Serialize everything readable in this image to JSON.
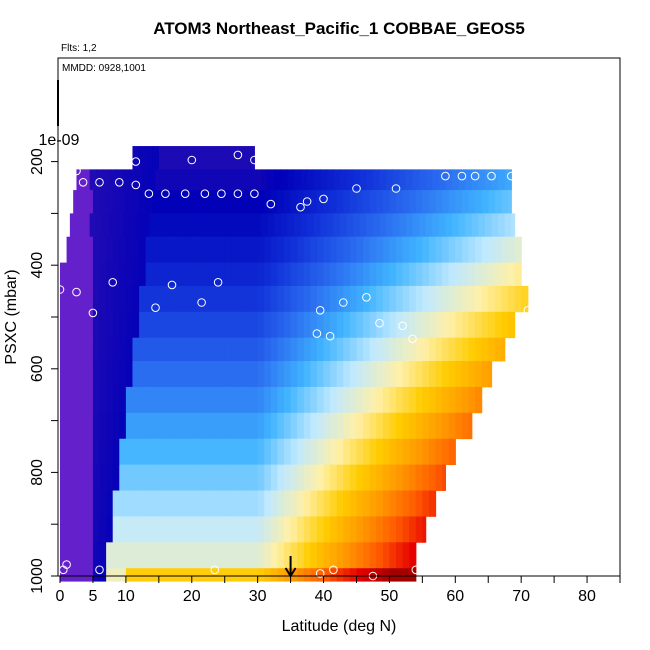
{
  "chart_data": {
    "type": "heatmap",
    "title": "ATOM3 Northeast_Pacific_1 COBBAE_GEOS5",
    "annotations": [
      "Flts: 1,2",
      "MMDD: 0928,1001"
    ],
    "xlabel": "Latitude (deg N)",
    "ylabel": "PSXC (mbar)",
    "xlim": [
      0,
      85
    ],
    "ylim": [
      1000,
      0
    ],
    "x_ticks": [
      0,
      5,
      10,
      20,
      30,
      40,
      50,
      60,
      70,
      80
    ],
    "y_ticks": [
      200,
      400,
      600,
      800,
      1000
    ],
    "y_extra_tick_label": "1e-09",
    "grid": false,
    "legend": "none",
    "rows": [
      {
        "p0": 170,
        "p1": 215,
        "x0": 11,
        "x1": 29.5
      },
      {
        "p0": 215,
        "p1": 255,
        "x0": 2.5,
        "x1": 68.5
      },
      {
        "p0": 255,
        "p1": 300,
        "x0": 2,
        "x1": 68.5
      },
      {
        "p0": 300,
        "p1": 345,
        "x0": 1.5,
        "x1": 69
      },
      {
        "p0": 345,
        "p1": 395,
        "x0": 1,
        "x1": 70
      },
      {
        "p0": 395,
        "p1": 440,
        "x0": 0,
        "x1": 70
      },
      {
        "p0": 440,
        "p1": 490,
        "x0": 0,
        "x1": 71
      },
      {
        "p0": 490,
        "p1": 540,
        "x0": 0,
        "x1": 69
      },
      {
        "p0": 540,
        "p1": 585,
        "x0": 0,
        "x1": 67.5
      },
      {
        "p0": 585,
        "p1": 635,
        "x0": 0,
        "x1": 65.5
      },
      {
        "p0": 635,
        "p1": 685,
        "x0": 0,
        "x1": 64
      },
      {
        "p0": 685,
        "p1": 735,
        "x0": 0,
        "x1": 62.5
      },
      {
        "p0": 735,
        "p1": 785,
        "x0": 0,
        "x1": 60
      },
      {
        "p0": 785,
        "p1": 835,
        "x0": 0,
        "x1": 58.5
      },
      {
        "p0": 835,
        "p1": 885,
        "x0": 0,
        "x1": 57
      },
      {
        "p0": 885,
        "p1": 935,
        "x0": 0,
        "x1": 55.5
      },
      {
        "p0": 935,
        "p1": 985,
        "x0": 0,
        "x1": 54
      },
      {
        "p0": 985,
        "p1": 1010,
        "x0": 0,
        "x1": 54
      }
    ],
    "colorscale": [
      "#8b2be2",
      "#3a14b0",
      "#0000b8",
      "#1030d8",
      "#2a6cf0",
      "#40b4ff",
      "#bfe9ff",
      "#fff0a8",
      "#ffcc00",
      "#ff9a00",
      "#ff5a00",
      "#e60000",
      "#a50000"
    ],
    "observations": [
      {
        "x": 11.5,
        "p": 200
      },
      {
        "x": 20,
        "p": 197
      },
      {
        "x": 27,
        "p": 187
      },
      {
        "x": 29.5,
        "p": 197
      },
      {
        "x": 2.5,
        "p": 218
      },
      {
        "x": 3.5,
        "p": 240
      },
      {
        "x": 6,
        "p": 240
      },
      {
        "x": 9,
        "p": 240
      },
      {
        "x": 11.5,
        "p": 245
      },
      {
        "x": 13.5,
        "p": 262
      },
      {
        "x": 16,
        "p": 262
      },
      {
        "x": 19,
        "p": 262
      },
      {
        "x": 22,
        "p": 262
      },
      {
        "x": 24.5,
        "p": 262
      },
      {
        "x": 27,
        "p": 262
      },
      {
        "x": 29.5,
        "p": 262
      },
      {
        "x": 32,
        "p": 282
      },
      {
        "x": 36.5,
        "p": 288
      },
      {
        "x": 37.5,
        "p": 277
      },
      {
        "x": 40,
        "p": 272
      },
      {
        "x": 45,
        "p": 252
      },
      {
        "x": 51,
        "p": 252
      },
      {
        "x": 58.5,
        "p": 228
      },
      {
        "x": 61,
        "p": 228
      },
      {
        "x": 63,
        "p": 228
      },
      {
        "x": 65.5,
        "p": 228
      },
      {
        "x": 68.5,
        "p": 228
      },
      {
        "x": 0,
        "p": 447
      },
      {
        "x": 2.5,
        "p": 452
      },
      {
        "x": 8,
        "p": 433
      },
      {
        "x": 17,
        "p": 438
      },
      {
        "x": 24,
        "p": 433
      },
      {
        "x": 5,
        "p": 492
      },
      {
        "x": 14.5,
        "p": 482
      },
      {
        "x": 21.5,
        "p": 472
      },
      {
        "x": 39.5,
        "p": 487
      },
      {
        "x": 43,
        "p": 472
      },
      {
        "x": 46.5,
        "p": 462
      },
      {
        "x": 71,
        "p": 487
      },
      {
        "x": 48.5,
        "p": 512
      },
      {
        "x": 52,
        "p": 517
      },
      {
        "x": 39,
        "p": 532
      },
      {
        "x": 41,
        "p": 537
      },
      {
        "x": 53.5,
        "p": 542
      },
      {
        "x": 1,
        "p": 978
      },
      {
        "x": 0.5,
        "p": 988
      },
      {
        "x": 6,
        "p": 988
      },
      {
        "x": 23.5,
        "p": 988
      },
      {
        "x": 39.5,
        "p": 995
      },
      {
        "x": 41.5,
        "p": 988
      },
      {
        "x": 47.5,
        "p": 1000
      },
      {
        "x": 54,
        "p": 988
      }
    ],
    "arrow_at_latitude": 35
  }
}
